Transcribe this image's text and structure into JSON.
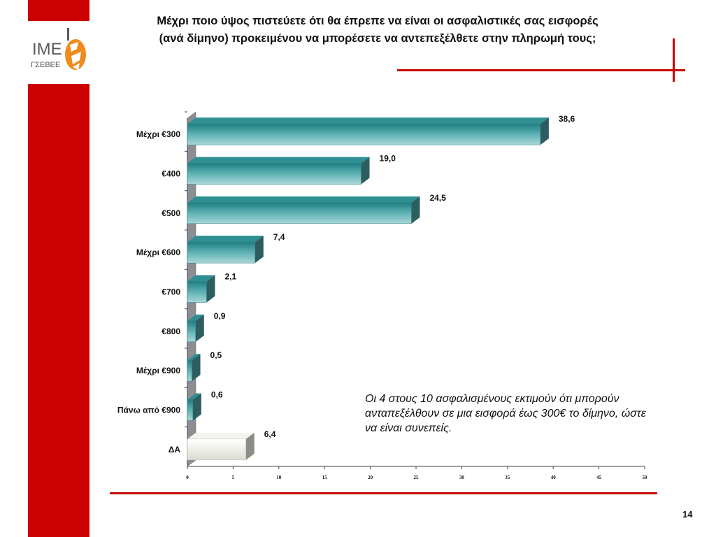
{
  "page": {
    "title_line1": "Μέχρι ποιο ύψος πιστεύετε ότι θα έπρεπε να είναι οι ασφαλιστικές σας εισφορές",
    "title_line2": "(ανά δίμηνο) προκειμένου να μπορέσετε να αντεπεξέλθετε στην πληρωμή τους;",
    "note": "Οι 4 στους 10 ασφαλισμένους εκτιμούν ότι μπορούν ανταπεξέλθουν σε μια εισφορά έως 300€ το δίμηνο, ώστε να είναι συνεπείς.",
    "page_number": "14"
  },
  "logo": {
    "text_top": "IME",
    "text_bottom": "ΓΣΕΒΕΕ"
  },
  "colors": {
    "accent_red": "#cc0000",
    "bar_teal": "#4ca3a6",
    "bar_gray": "#e6e6dc"
  },
  "chart_data": {
    "type": "bar",
    "orientation": "horizontal",
    "categories": [
      "Μέχρι €300",
      "€400",
      "€500",
      "Μέχρι €600",
      "€700",
      "€800",
      "Μέχρι €900",
      "Πάνω από €900",
      "ΔΑ"
    ],
    "values": [
      38.6,
      19.0,
      24.5,
      7.4,
      2.1,
      0.9,
      0.5,
      0.6,
      6.4
    ],
    "value_labels": [
      "38,6",
      "19,0",
      "24,5",
      "7,4",
      "2,1",
      "0,9",
      "0,5",
      "0,6",
      "6,4"
    ],
    "xlim": [
      0,
      50
    ],
    "xticks": [
      0,
      5,
      10,
      15,
      20,
      25,
      30,
      35,
      40,
      45,
      50
    ],
    "grid": false,
    "legend": "none"
  }
}
